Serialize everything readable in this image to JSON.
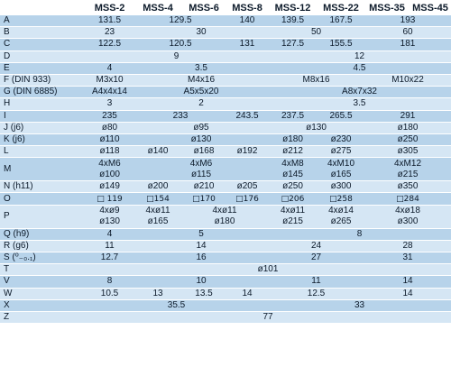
{
  "columns": [
    "",
    "MSS-2",
    "MSS-4",
    "MSS-6",
    "MSS-8",
    "MSS-12",
    "MSS-22",
    "MSS-35",
    "MSS-45"
  ],
  "rows": {
    "A": {
      "label": "A",
      "c": [
        "131.5",
        "129.5",
        "140",
        "139.5",
        "167.5",
        "193"
      ]
    },
    "B": {
      "label": "B",
      "c": [
        "23",
        "30",
        "50",
        "60"
      ]
    },
    "C": {
      "label": "C",
      "c": [
        "122.5",
        "120.5",
        "131",
        "127.5",
        "155.5",
        "181"
      ]
    },
    "D": {
      "label": "D",
      "c": [
        "9",
        "12"
      ]
    },
    "E": {
      "label": "E",
      "c": [
        "4",
        "3.5",
        "4.5"
      ]
    },
    "F": {
      "label": "F (DIN 933)",
      "c": [
        "M3x10",
        "M4x16",
        "M8x16",
        "M10x22"
      ]
    },
    "G": {
      "label": "G (DIN 6885)",
      "c": [
        "A4x4x14",
        "A5x5x20",
        "A8x7x32"
      ]
    },
    "H": {
      "label": "H",
      "c": [
        "3",
        "2",
        "3.5"
      ]
    },
    "I": {
      "label": "I",
      "c": [
        "235",
        "233",
        "243.5",
        "237.5",
        "265.5",
        "291"
      ]
    },
    "J": {
      "label": "J (j6)",
      "c": [
        "ø80",
        "ø95",
        "ø130",
        "ø180"
      ]
    },
    "K": {
      "label": "K (j6)",
      "c": [
        "ø110",
        "ø130",
        "ø180",
        "ø230",
        "ø250"
      ]
    },
    "L": {
      "label": "L",
      "c": [
        "ø118",
        "ø140",
        "ø168",
        "ø192",
        "ø212",
        "ø275",
        "ø305"
      ]
    },
    "M": {
      "label": "M",
      "c": [
        "4xM6",
        "ø100",
        "4xM6",
        "ø115",
        "4xM8",
        "ø145",
        "4xM10",
        "ø165",
        "4xM12",
        "ø215"
      ]
    },
    "N": {
      "label": "N (h11)",
      "c": [
        "ø149",
        "ø200",
        "ø210",
        "ø205",
        "ø250",
        "ø300",
        "ø350"
      ]
    },
    "O": {
      "label": "O",
      "c": [
        "□ 119",
        "□154",
        "□170",
        "□176",
        "□206",
        "□258",
        "□284"
      ]
    },
    "P": {
      "label": "P",
      "c": [
        "4xø9",
        "ø130",
        "4xø11",
        "ø165",
        "4xø11",
        "ø180",
        "4xø11",
        "ø215",
        "4xø14",
        "ø265",
        "4xø18",
        "ø300"
      ]
    },
    "Q": {
      "label": "Q (h9)",
      "c": [
        "4",
        "5",
        "8"
      ]
    },
    "R": {
      "label": "R (g6)",
      "c": [
        "11",
        "14",
        "24",
        "28"
      ]
    },
    "S": {
      "label": "S (⁰₋₀.₁)",
      "c": [
        "12.7",
        "16",
        "27",
        "31"
      ]
    },
    "T": {
      "label": "T",
      "c": [
        "ø101"
      ]
    },
    "V": {
      "label": "V",
      "c": [
        "8",
        "10",
        "11",
        "14"
      ]
    },
    "W": {
      "label": "W",
      "c": [
        "10.5",
        "13",
        "13.5",
        "14",
        "12.5",
        "14"
      ]
    },
    "X": {
      "label": "X",
      "c": [
        "35.5",
        "33"
      ]
    },
    "Z": {
      "label": "Z",
      "c": [
        "77"
      ]
    }
  }
}
